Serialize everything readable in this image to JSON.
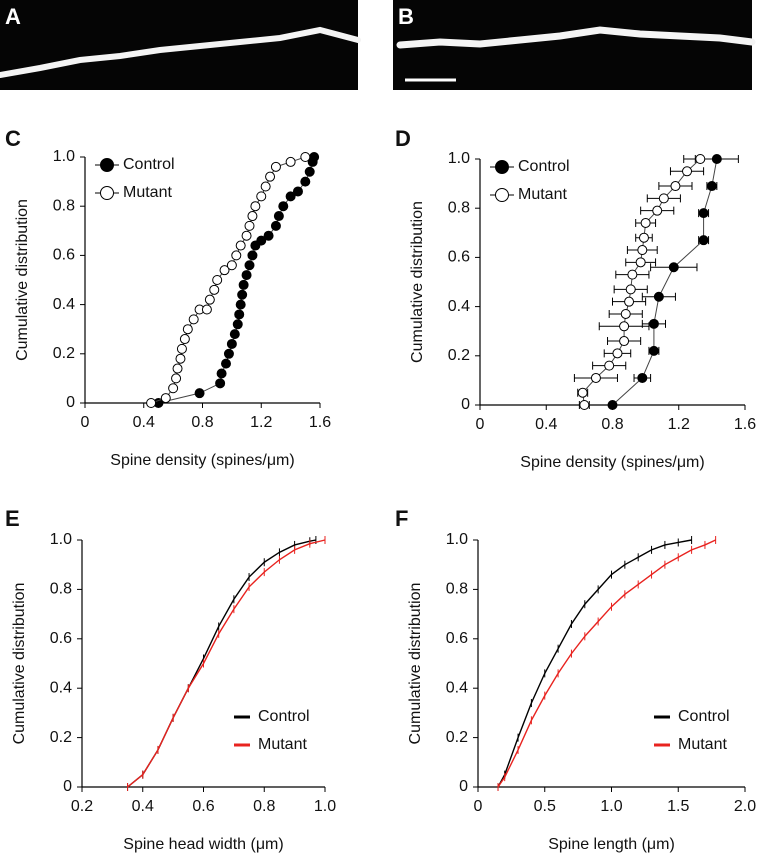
{
  "images": [
    {
      "label": "A"
    },
    {
      "label": "B"
    }
  ],
  "chart_data": [
    {
      "type": "scatter",
      "panel_label": "C",
      "xlabel": "Spine density (spines/μm)",
      "ylabel": "Cumulative distribution",
      "xlim": [
        0,
        1.6
      ],
      "xticks": [
        0,
        0.4,
        0.8,
        1.2,
        1.6
      ],
      "ylim": [
        0,
        1
      ],
      "yticks": [
        0,
        0.2,
        0.4,
        0.6,
        0.8,
        {
          "value": 1,
          "label": "1.0"
        }
      ],
      "legend": "upper left",
      "connect": true,
      "series": [
        {
          "name": "Control",
          "color": "#000000",
          "marker": "filled",
          "x": [
            0.5,
            0.78,
            0.92,
            0.93,
            0.96,
            0.98,
            1.0,
            1.02,
            1.04,
            1.05,
            1.06,
            1.07,
            1.08,
            1.1,
            1.12,
            1.14,
            1.16,
            1.2,
            1.25,
            1.3,
            1.32,
            1.35,
            1.4,
            1.45,
            1.5,
            1.53,
            1.55,
            1.56
          ],
          "values": [
            0,
            0.04,
            0.08,
            0.12,
            0.16,
            0.2,
            0.24,
            0.28,
            0.32,
            0.36,
            0.4,
            0.44,
            0.48,
            0.52,
            0.56,
            0.6,
            0.64,
            0.66,
            0.68,
            0.72,
            0.76,
            0.8,
            0.84,
            0.86,
            0.9,
            0.94,
            0.98,
            1
          ]
        },
        {
          "name": "Mutant",
          "color": "#000000",
          "marker": "open",
          "x": [
            0.45,
            0.55,
            0.6,
            0.62,
            0.63,
            0.65,
            0.66,
            0.68,
            0.7,
            0.74,
            0.78,
            0.83,
            0.85,
            0.88,
            0.9,
            0.95,
            1.0,
            1.03,
            1.06,
            1.1,
            1.12,
            1.14,
            1.16,
            1.2,
            1.23,
            1.26,
            1.3,
            1.4,
            1.5
          ],
          "values": [
            0,
            0.02,
            0.06,
            0.1,
            0.14,
            0.18,
            0.22,
            0.26,
            0.3,
            0.34,
            0.38,
            0.38,
            0.42,
            0.46,
            0.5,
            0.54,
            0.56,
            0.6,
            0.64,
            0.68,
            0.72,
            0.76,
            0.8,
            0.84,
            0.88,
            0.92,
            0.96,
            0.98,
            1
          ]
        }
      ]
    },
    {
      "type": "scatter",
      "panel_label": "D",
      "xlabel": "Spine density (spines/μm)",
      "ylabel": "Cumulative distribution",
      "xlim": [
        0,
        1.6
      ],
      "xticks": [
        0,
        0.4,
        0.8,
        1.2,
        1.6
      ],
      "ylim": [
        0,
        1
      ],
      "yticks": [
        0,
        0.2,
        0.4,
        0.6,
        0.8,
        {
          "value": 1,
          "label": "1.0"
        }
      ],
      "legend": "upper left",
      "connect": true,
      "series": [
        {
          "name": "Control",
          "color": "#000000",
          "marker": "filled",
          "x": [
            0.8,
            0.98,
            1.05,
            1.05,
            1.08,
            1.17,
            1.35,
            1.35,
            1.4,
            1.43
          ],
          "xerr": [
            0,
            0.05,
            0.03,
            0.07,
            0.1,
            0.14,
            0.03,
            0.03,
            0.03,
            0.13
          ],
          "values": [
            0,
            0.11,
            0.22,
            0.33,
            0.44,
            0.56,
            0.67,
            0.78,
            0.89,
            1
          ]
        },
        {
          "name": "Mutant",
          "color": "#000000",
          "marker": "open",
          "x": [
            0.63,
            0.62,
            0.7,
            0.78,
            0.83,
            0.87,
            0.87,
            0.88,
            0.9,
            0.91,
            0.92,
            0.97,
            0.98,
            0.99,
            1.0,
            1.07,
            1.11,
            1.18,
            1.25,
            1.33
          ],
          "xerr": [
            0.03,
            0.03,
            0.13,
            0.1,
            0.08,
            0.1,
            0.15,
            0.1,
            0.1,
            0.1,
            0.1,
            0.09,
            0.09,
            0.05,
            0.06,
            0.1,
            0.1,
            0.1,
            0.1,
            0.1
          ],
          "values": [
            0,
            0.05,
            0.11,
            0.16,
            0.21,
            0.26,
            0.32,
            0.37,
            0.42,
            0.47,
            0.53,
            0.58,
            0.63,
            0.68,
            0.74,
            0.79,
            0.84,
            0.89,
            0.95,
            1
          ]
        }
      ]
    },
    {
      "type": "line",
      "panel_label": "E",
      "xlabel": "Spine head width (μm)",
      "ylabel": "Cumulative distribution",
      "xlim": [
        0.2,
        1
      ],
      "xticks": [
        0.2,
        0.4,
        0.6,
        0.8,
        {
          "value": 1,
          "label": "1.0"
        }
      ],
      "ylim": [
        0,
        1
      ],
      "yticks": [
        0,
        0.2,
        0.4,
        0.6,
        0.8,
        {
          "value": 1,
          "label": "1.0"
        }
      ],
      "legend": "lower right",
      "series": [
        {
          "name": "Control",
          "color": "#000000",
          "x": [
            0.35,
            0.4,
            0.45,
            0.5,
            0.55,
            0.6,
            0.65,
            0.7,
            0.75,
            0.8,
            0.85,
            0.9,
            0.95,
            0.97
          ],
          "values": [
            0,
            0.05,
            0.15,
            0.28,
            0.4,
            0.52,
            0.65,
            0.76,
            0.85,
            0.91,
            0.95,
            0.98,
            0.995,
            1
          ]
        },
        {
          "name": "Mutant",
          "color": "#e8231f",
          "x": [
            0.35,
            0.4,
            0.45,
            0.5,
            0.55,
            0.6,
            0.65,
            0.7,
            0.75,
            0.8,
            0.85,
            0.9,
            0.95,
            1.0
          ],
          "values": [
            0,
            0.05,
            0.15,
            0.28,
            0.4,
            0.5,
            0.62,
            0.72,
            0.81,
            0.87,
            0.92,
            0.96,
            0.985,
            1
          ]
        }
      ]
    },
    {
      "type": "line",
      "panel_label": "F",
      "xlabel": "Spine length (μm)",
      "ylabel": "Cumulative distribution",
      "xlim": [
        0,
        2
      ],
      "xticks": [
        0,
        0.5,
        {
          "value": 1,
          "label": "1.0"
        },
        1.5,
        {
          "value": 2,
          "label": "2.0"
        }
      ],
      "ylim": [
        0,
        1
      ],
      "yticks": [
        0,
        0.2,
        0.4,
        0.6,
        0.8,
        {
          "value": 1,
          "label": "1.0"
        }
      ],
      "legend": "lower right",
      "series": [
        {
          "name": "Control",
          "color": "#000000",
          "x": [
            0.15,
            0.2,
            0.3,
            0.4,
            0.5,
            0.6,
            0.7,
            0.8,
            0.9,
            1.0,
            1.1,
            1.2,
            1.3,
            1.4,
            1.5,
            1.6
          ],
          "values": [
            0,
            0.05,
            0.2,
            0.34,
            0.46,
            0.56,
            0.66,
            0.74,
            0.8,
            0.86,
            0.9,
            0.93,
            0.96,
            0.98,
            0.99,
            1
          ]
        },
        {
          "name": "Mutant",
          "color": "#e8231f",
          "x": [
            0.15,
            0.2,
            0.3,
            0.4,
            0.5,
            0.6,
            0.7,
            0.8,
            0.9,
            1.0,
            1.1,
            1.2,
            1.3,
            1.4,
            1.5,
            1.6,
            1.7,
            1.78
          ],
          "values": [
            0,
            0.04,
            0.15,
            0.27,
            0.37,
            0.46,
            0.54,
            0.61,
            0.67,
            0.73,
            0.78,
            0.82,
            0.86,
            0.9,
            0.93,
            0.96,
            0.98,
            1
          ]
        }
      ]
    }
  ]
}
